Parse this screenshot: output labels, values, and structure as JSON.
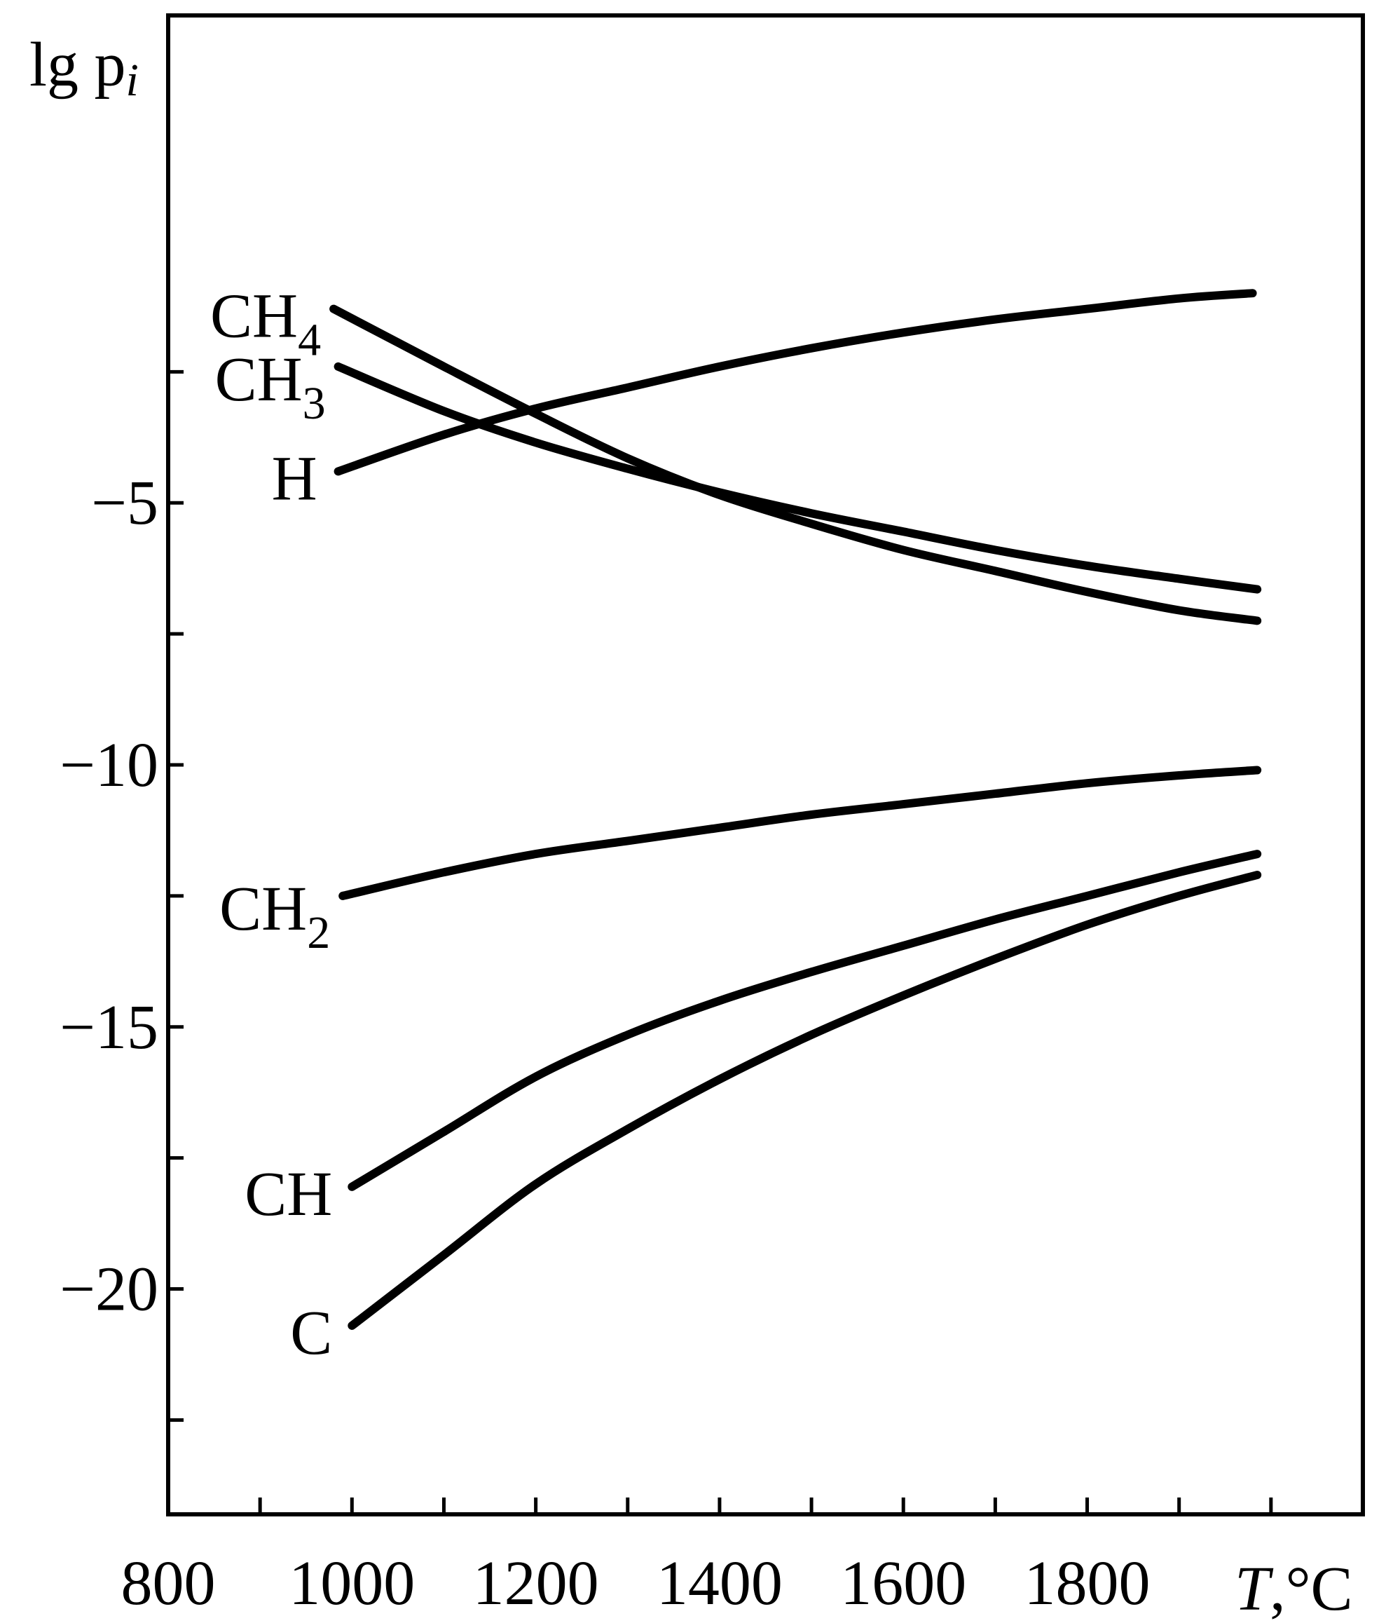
{
  "chart_data": {
    "type": "line",
    "title": "",
    "ylabel": "lg p",
    "ylabel_subscript": "i",
    "xlabel_var": "T",
    "xlabel_unit": ",°C",
    "xlim": [
      800,
      2100
    ],
    "ylim": [
      -24.3,
      4.3
    ],
    "x_ticks": [
      800,
      900,
      1000,
      1100,
      1200,
      1300,
      1400,
      1500,
      1600,
      1700,
      1800,
      1900,
      2000
    ],
    "x_tick_labels": [
      "800",
      "1000",
      "1200",
      "1400",
      "1600",
      "1800"
    ],
    "x_tick_label_values": [
      800,
      1000,
      1200,
      1400,
      1600,
      1800
    ],
    "y_ticks": [
      -22.5,
      -20,
      -17.5,
      -15,
      -12.5,
      -10,
      -7.5,
      -5,
      -2.5
    ],
    "y_tick_labels": [
      "−20",
      "−15",
      "−10",
      "−5"
    ],
    "y_tick_label_values": [
      -20,
      -15,
      -10,
      -5
    ],
    "grid": false,
    "legend": "none",
    "line_color": "#000000",
    "series": [
      {
        "name": "CH4",
        "label_base": "CH",
        "label_sub": "4",
        "x": [
          980,
          1100,
          1200,
          1300,
          1400,
          1500,
          1600,
          1700,
          1800,
          1900,
          1985
        ],
        "y": [
          -1.3,
          -2.4,
          -3.3,
          -4.15,
          -4.85,
          -5.4,
          -5.9,
          -6.3,
          -6.7,
          -7.05,
          -7.25
        ]
      },
      {
        "name": "CH3",
        "label_base": "CH",
        "label_sub": "3",
        "x": [
          985,
          1100,
          1200,
          1300,
          1400,
          1500,
          1600,
          1700,
          1800,
          1900,
          1985
        ],
        "y": [
          -2.4,
          -3.25,
          -3.85,
          -4.35,
          -4.8,
          -5.2,
          -5.55,
          -5.9,
          -6.2,
          -6.45,
          -6.65
        ]
      },
      {
        "name": "H",
        "label_base": "H",
        "label_sub": "",
        "x": [
          985,
          1100,
          1200,
          1300,
          1400,
          1500,
          1600,
          1700,
          1800,
          1900,
          1980
        ],
        "y": [
          -4.4,
          -3.7,
          -3.2,
          -2.8,
          -2.4,
          -2.05,
          -1.75,
          -1.5,
          -1.3,
          -1.1,
          -1.0
        ]
      },
      {
        "name": "CH2",
        "label_base": "CH",
        "label_sub": "2",
        "x": [
          990,
          1100,
          1200,
          1300,
          1400,
          1500,
          1600,
          1700,
          1800,
          1900,
          1985
        ],
        "y": [
          -12.5,
          -12.05,
          -11.7,
          -11.45,
          -11.2,
          -10.95,
          -10.75,
          -10.55,
          -10.35,
          -10.2,
          -10.1
        ]
      },
      {
        "name": "CH",
        "label_base": "CH",
        "label_sub": "",
        "x": [
          1000,
          1100,
          1200,
          1300,
          1400,
          1500,
          1600,
          1700,
          1800,
          1900,
          1985
        ],
        "y": [
          -18.05,
          -17.0,
          -15.95,
          -15.15,
          -14.5,
          -13.95,
          -13.45,
          -12.95,
          -12.5,
          -12.05,
          -11.7
        ]
      },
      {
        "name": "C",
        "label_base": "C",
        "label_sub": "",
        "x": [
          1000,
          1100,
          1200,
          1300,
          1400,
          1500,
          1600,
          1700,
          1800,
          1900,
          1985
        ],
        "y": [
          -20.7,
          -19.35,
          -18.0,
          -16.95,
          -16.0,
          -15.15,
          -14.4,
          -13.7,
          -13.05,
          -12.5,
          -12.1
        ]
      }
    ]
  }
}
